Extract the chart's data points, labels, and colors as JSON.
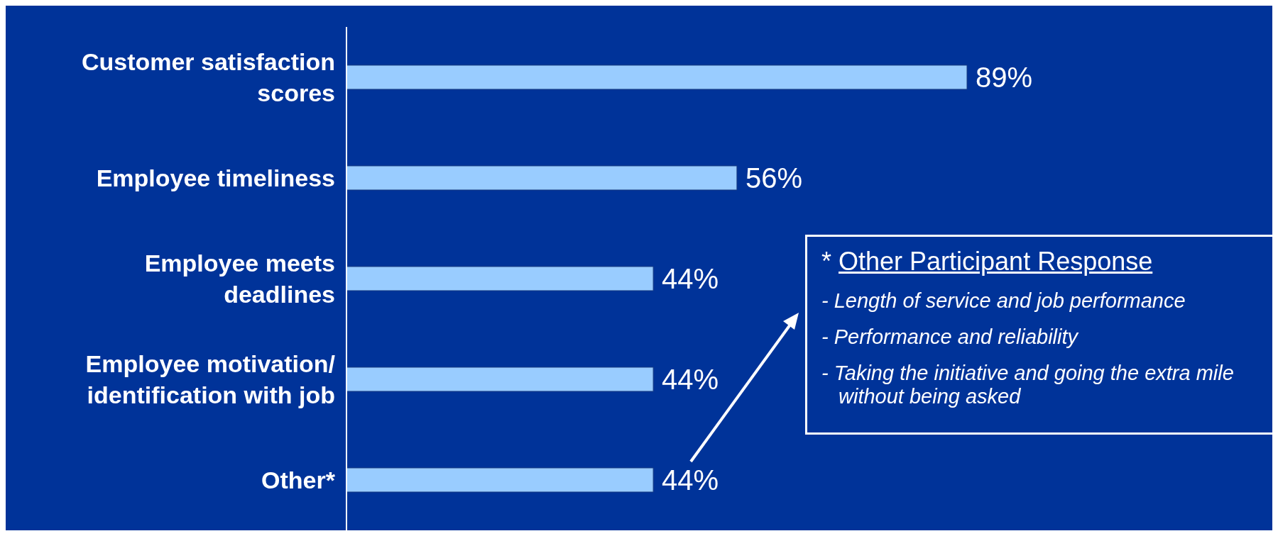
{
  "chart_data": {
    "type": "bar",
    "orientation": "horizontal",
    "categories": [
      "Customer satisfaction scores",
      "Employee timeliness",
      "Employee meets deadlines",
      "Employee motivation/identification with job",
      "Other*"
    ],
    "values": [
      89,
      56,
      44,
      44,
      44
    ],
    "value_labels": [
      "89%",
      "56%",
      "44%",
      "44%",
      "44%"
    ],
    "color": "#99ccff",
    "annotations": [
      "* Other Participant Response",
      "- Length of service and job performance",
      "- Performance and reliability",
      "- Taking the initiative and going the extra mile without being asked"
    ]
  }
}
